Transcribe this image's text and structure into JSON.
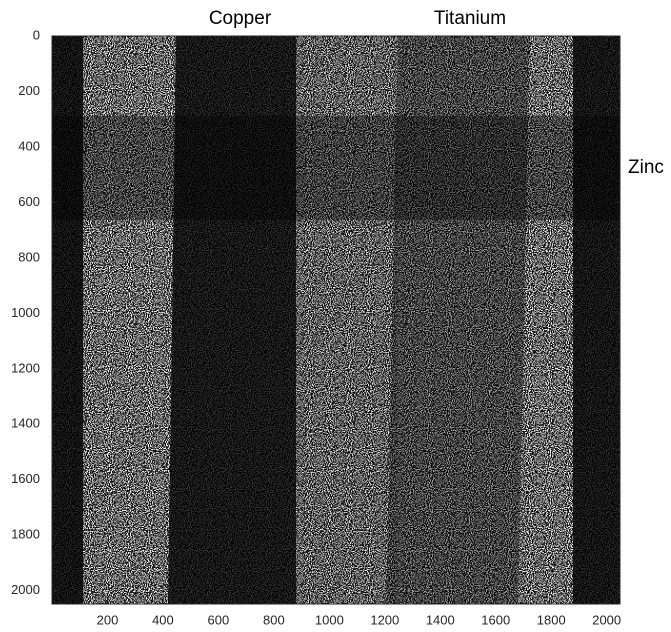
{
  "chart_data": {
    "type": "image",
    "annotations": [
      "Copper",
      "Titanium",
      "Zinc"
    ],
    "xlim": [
      0,
      2048
    ],
    "ylim": [
      0,
      2048
    ],
    "xticks": [
      200,
      400,
      600,
      800,
      1000,
      1200,
      1400,
      1600,
      1800,
      2000
    ],
    "yticks": [
      0,
      200,
      400,
      600,
      800,
      1000,
      1200,
      1400,
      1600,
      1800,
      2000
    ]
  }
}
